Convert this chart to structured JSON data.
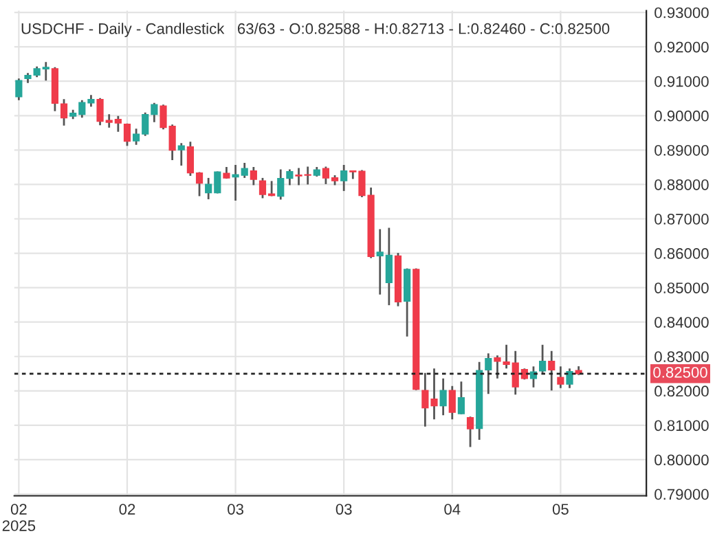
{
  "chart_data": {
    "type": "candlestick",
    "title": "USDCHF - Daily - Candlestick   63/63 - O:0.82588 - H:0.82713 - L:0.82460 - C:0.82500",
    "categories": [
      "02\n2025",
      null,
      null,
      null,
      null,
      null,
      null,
      null,
      null,
      null,
      null,
      null,
      "02",
      null,
      null,
      null,
      null,
      null,
      null,
      null,
      null,
      null,
      null,
      null,
      "03",
      null,
      null,
      null,
      null,
      null,
      null,
      null,
      null,
      null,
      null,
      null,
      "03",
      null,
      null,
      null,
      null,
      null,
      null,
      null,
      null,
      null,
      null,
      null,
      "04",
      null,
      null,
      null,
      null,
      null,
      null,
      null,
      null,
      null,
      null,
      null,
      "05",
      null,
      null,
      null,
      null,
      null,
      null,
      null,
      null,
      null
    ],
    "ohlc": [
      [
        0.9055,
        0.9108,
        0.9045,
        0.9102
      ],
      [
        0.9108,
        0.9124,
        0.9095,
        0.9117
      ],
      [
        0.9118,
        0.9143,
        0.9112,
        0.9136
      ],
      [
        0.9136,
        0.9156,
        0.9102,
        0.914
      ],
      [
        0.9136,
        0.9141,
        0.9013,
        0.9036
      ],
      [
        0.9034,
        0.9048,
        0.8971,
        0.8994
      ],
      [
        0.8999,
        0.9017,
        0.899,
        0.9007
      ],
      [
        0.9004,
        0.9045,
        0.8994,
        0.9038
      ],
      [
        0.9037,
        0.906,
        0.9026,
        0.9047
      ],
      [
        0.9047,
        0.9051,
        0.8972,
        0.8984
      ],
      [
        0.8986,
        0.9004,
        0.8965,
        0.8981
      ],
      [
        0.8989,
        0.8999,
        0.8953,
        0.8979
      ],
      [
        0.8975,
        0.8977,
        0.8912,
        0.8926
      ],
      [
        0.8927,
        0.8962,
        0.8915,
        0.8946
      ],
      [
        0.8947,
        0.9009,
        0.8941,
        0.9003
      ],
      [
        0.9004,
        0.9037,
        0.8981,
        0.9032
      ],
      [
        0.9028,
        0.9032,
        0.896,
        0.8966
      ],
      [
        0.8969,
        0.8974,
        0.8871,
        0.89
      ],
      [
        0.8901,
        0.892,
        0.8855,
        0.8912
      ],
      [
        0.8909,
        0.8924,
        0.8825,
        0.8834
      ],
      [
        0.8833,
        0.8836,
        0.8766,
        0.8804
      ],
      [
        0.8776,
        0.8819,
        0.8757,
        0.88
      ],
      [
        0.8776,
        0.8838,
        0.8774,
        0.8836
      ],
      [
        0.8832,
        0.8851,
        0.8817,
        0.8819
      ],
      [
        0.8822,
        0.8857,
        0.8753,
        0.8828
      ],
      [
        0.8827,
        0.8863,
        0.8819,
        0.8846
      ],
      [
        0.8839,
        0.8851,
        0.8798,
        0.8815
      ],
      [
        0.881,
        0.8819,
        0.876,
        0.8771
      ],
      [
        0.8772,
        0.881,
        0.8766,
        0.8768
      ],
      [
        0.8766,
        0.8844,
        0.8756,
        0.8817
      ],
      [
        0.8818,
        0.8844,
        0.8798,
        0.8837
      ],
      [
        0.8827,
        0.8848,
        0.8798,
        0.8825
      ],
      [
        0.8828,
        0.8852,
        0.88,
        0.8827
      ],
      [
        0.8827,
        0.8851,
        0.8823,
        0.8842
      ],
      [
        0.8846,
        0.8852,
        0.8801,
        0.8819
      ],
      [
        0.8819,
        0.8827,
        0.8798,
        0.8811
      ],
      [
        0.8811,
        0.8857,
        0.8781,
        0.8839
      ],
      [
        0.8839,
        0.8841,
        0.8816,
        0.8837
      ],
      [
        0.8838,
        0.8842,
        0.8763,
        0.8768
      ],
      [
        0.8768,
        0.8791,
        0.8586,
        0.8591
      ],
      [
        0.8593,
        0.867,
        0.848,
        0.8603
      ],
      [
        0.8515,
        0.8674,
        0.8449,
        0.8594
      ],
      [
        0.8592,
        0.8601,
        0.8446,
        0.8459
      ],
      [
        0.8461,
        0.8556,
        0.8358,
        0.8553
      ],
      [
        0.8553,
        0.8556,
        0.8202,
        0.8205
      ],
      [
        0.8201,
        0.8252,
        0.8096,
        0.8151
      ],
      [
        0.8176,
        0.8265,
        0.8117,
        0.8157
      ],
      [
        0.8157,
        0.8236,
        0.8129,
        0.8201
      ],
      [
        0.8201,
        0.8214,
        0.8117,
        0.8138
      ],
      [
        0.8134,
        0.8227,
        0.8132,
        0.818
      ],
      [
        0.8122,
        0.8125,
        0.8037,
        0.809
      ],
      [
        0.8091,
        0.8284,
        0.8058,
        0.8259
      ],
      [
        0.8261,
        0.8309,
        0.8191,
        0.8294
      ],
      [
        0.8296,
        0.8303,
        0.8236,
        0.8286
      ],
      [
        0.8284,
        0.8334,
        0.8265,
        0.8277
      ],
      [
        0.8281,
        0.8316,
        0.8189,
        0.8212
      ],
      [
        0.8262,
        0.8265,
        0.8233,
        0.8236
      ],
      [
        0.8236,
        0.8271,
        0.821,
        0.8255
      ],
      [
        0.8258,
        0.8334,
        0.8252,
        0.8286
      ],
      [
        0.8286,
        0.8316,
        0.8201,
        0.8261
      ],
      [
        0.8239,
        0.8271,
        0.8208,
        0.822
      ],
      [
        0.822,
        0.8265,
        0.8208,
        0.8256
      ],
      [
        0.82588,
        0.82713,
        0.8246,
        0.825
      ],
      null,
      null,
      null,
      null,
      null,
      null,
      null
    ],
    "colors": [
      "#26a69a",
      "#26a69a",
      "#26a69a",
      "#26a69a",
      "#ef3b4a",
      "#ef3b4a",
      "#26a69a",
      "#26a69a",
      "#26a69a",
      "#ef3b4a",
      "#ef3b4a",
      "#ef3b4a",
      "#ef3b4a",
      "#26a69a",
      "#26a69a",
      "#26a69a",
      "#ef3b4a",
      "#ef3b4a",
      "#26a69a",
      "#ef3b4a",
      "#ef3b4a",
      "#26a69a",
      "#26a69a",
      "#ef3b4a",
      "#26a69a",
      "#26a69a",
      "#ef3b4a",
      "#ef3b4a",
      "#ef3b4a",
      "#26a69a",
      "#26a69a",
      "#ef3b4a",
      "#ef3b4a",
      "#26a69a",
      "#ef3b4a",
      "#ef3b4a",
      "#26a69a",
      "#ef3b4a",
      "#ef3b4a",
      "#ef3b4a",
      "#26a69a",
      "#26a69a",
      "#ef3b4a",
      "#26a69a",
      "#ef3b4a",
      "#ef3b4a",
      "#ef3b4a",
      "#26a69a",
      "#ef3b4a",
      "#26a69a",
      "#ef3b4a",
      "#26a69a",
      "#26a69a",
      "#ef3b4a",
      "#ef3b4a",
      "#ef3b4a",
      "#ef3b4a",
      "#26a69a",
      "#26a69a",
      "#ef3b4a",
      "#ef3b4a",
      "#26a69a",
      "#ef3b4a",
      null,
      null,
      null,
      null,
      null,
      null,
      null
    ],
    "ylim": [
      0.7895,
      0.9305
    ],
    "yticks": [
      {
        "value": 0.79,
        "label": "0.79000"
      },
      {
        "value": 0.8,
        "label": "0.80000"
      },
      {
        "value": 0.81,
        "label": "0.81000"
      },
      {
        "value": 0.82,
        "label": "0.82000"
      },
      {
        "value": 0.83,
        "label": "0.83000"
      },
      {
        "value": 0.84,
        "label": "0.84000"
      },
      {
        "value": 0.85,
        "label": "0.85000"
      },
      {
        "value": 0.86,
        "label": "0.86000"
      },
      {
        "value": 0.87,
        "label": "0.87000"
      },
      {
        "value": 0.88,
        "label": "0.88000"
      },
      {
        "value": 0.89,
        "label": "0.89000"
      },
      {
        "value": 0.9,
        "label": "0.90000"
      },
      {
        "value": 0.91,
        "label": "0.91000"
      },
      {
        "value": 0.92,
        "label": "0.92000"
      },
      {
        "value": 0.93,
        "label": "0.93000"
      }
    ],
    "ref_lines": [
      {
        "axis": "y",
        "value": 0.825,
        "label": "0.82500",
        "color": "#222222",
        "line_style": "dotted"
      }
    ],
    "grid": true
  }
}
